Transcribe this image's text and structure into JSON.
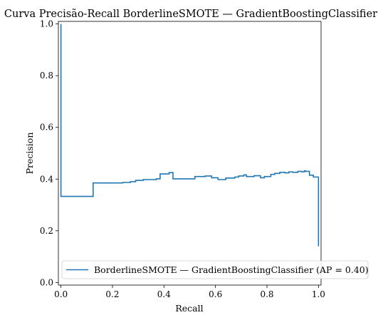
{
  "chart_data": {
    "type": "line",
    "title": "Curva Precisão-Recall BorderlineSMOTE — GradientBoostingClassifier",
    "xlabel": "Recall",
    "ylabel": "Precision",
    "xlim": [
      -0.01,
      1.01
    ],
    "ylim": [
      -0.01,
      1.01
    ],
    "xticks": [
      0.0,
      0.2,
      0.4,
      0.6,
      0.8,
      1.0
    ],
    "xtick_labels": [
      "0.0",
      "0.2",
      "0.4",
      "0.6",
      "0.8",
      "1.0"
    ],
    "yticks": [
      0.0,
      0.2,
      0.4,
      0.6,
      0.8,
      1.0
    ],
    "ytick_labels": [
      "0.0",
      "0.2",
      "0.4",
      "0.6",
      "0.8",
      "1.0"
    ],
    "grid": false,
    "legend_position": "lower-right",
    "series": [
      {
        "name": "BorderlineSMOTE — GradientBoostingClassifier (AP = 0.40)",
        "color": "#1f77b4",
        "drawstyle": "steps-post",
        "x": [
          0.0,
          0.0,
          0.125,
          0.24,
          0.27,
          0.29,
          0.32,
          0.37,
          0.385,
          0.42,
          0.435,
          0.52,
          0.56,
          0.585,
          0.61,
          0.64,
          0.675,
          0.69,
          0.71,
          0.72,
          0.75,
          0.775,
          0.79,
          0.815,
          0.83,
          0.85,
          0.87,
          0.885,
          0.9,
          0.92,
          0.935,
          0.945,
          0.95,
          0.965,
          0.98,
          1.0
        ],
        "y": [
          1.0,
          0.333,
          0.385,
          0.387,
          0.39,
          0.395,
          0.398,
          0.401,
          0.42,
          0.425,
          0.401,
          0.41,
          0.412,
          0.405,
          0.398,
          0.404,
          0.408,
          0.412,
          0.416,
          0.41,
          0.413,
          0.405,
          0.41,
          0.418,
          0.422,
          0.426,
          0.424,
          0.428,
          0.426,
          0.43,
          0.428,
          0.432,
          0.43,
          0.415,
          0.408,
          0.14
        ]
      }
    ]
  }
}
